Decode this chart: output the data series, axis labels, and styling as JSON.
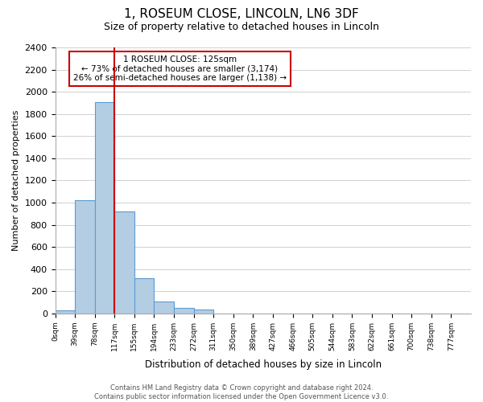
{
  "title": "1, ROSEUM CLOSE, LINCOLN, LN6 3DF",
  "subtitle": "Size of property relative to detached houses in Lincoln",
  "xlabel": "Distribution of detached houses by size in Lincoln",
  "ylabel": "Number of detached properties",
  "bin_labels": [
    "0sqm",
    "39sqm",
    "78sqm",
    "117sqm",
    "155sqm",
    "194sqm",
    "233sqm",
    "272sqm",
    "311sqm",
    "350sqm",
    "389sqm",
    "427sqm",
    "466sqm",
    "505sqm",
    "544sqm",
    "583sqm",
    "622sqm",
    "661sqm",
    "700sqm",
    "738sqm",
    "777sqm"
  ],
  "bar_values": [
    25,
    1020,
    1905,
    920,
    315,
    105,
    50,
    35,
    0,
    0,
    0,
    0,
    0,
    0,
    0,
    0,
    0,
    0,
    0,
    0
  ],
  "bar_color": "#b3cde3",
  "bar_edge_color": "#5b9bd5",
  "vline_x": 3,
  "vline_color": "#cc0000",
  "annotation_text": "1 ROSEUM CLOSE: 125sqm\n← 73% of detached houses are smaller (3,174)\n26% of semi-detached houses are larger (1,138) →",
  "annotation_box_edgecolor": "#cc0000",
  "ylim": [
    0,
    2400
  ],
  "yticks": [
    0,
    200,
    400,
    600,
    800,
    1000,
    1200,
    1400,
    1600,
    1800,
    2000,
    2200,
    2400
  ],
  "footer_text": "Contains HM Land Registry data © Crown copyright and database right 2024.\nContains public sector information licensed under the Open Government Licence v3.0.",
  "background_color": "#ffffff",
  "grid_color": "#d0d0d0"
}
